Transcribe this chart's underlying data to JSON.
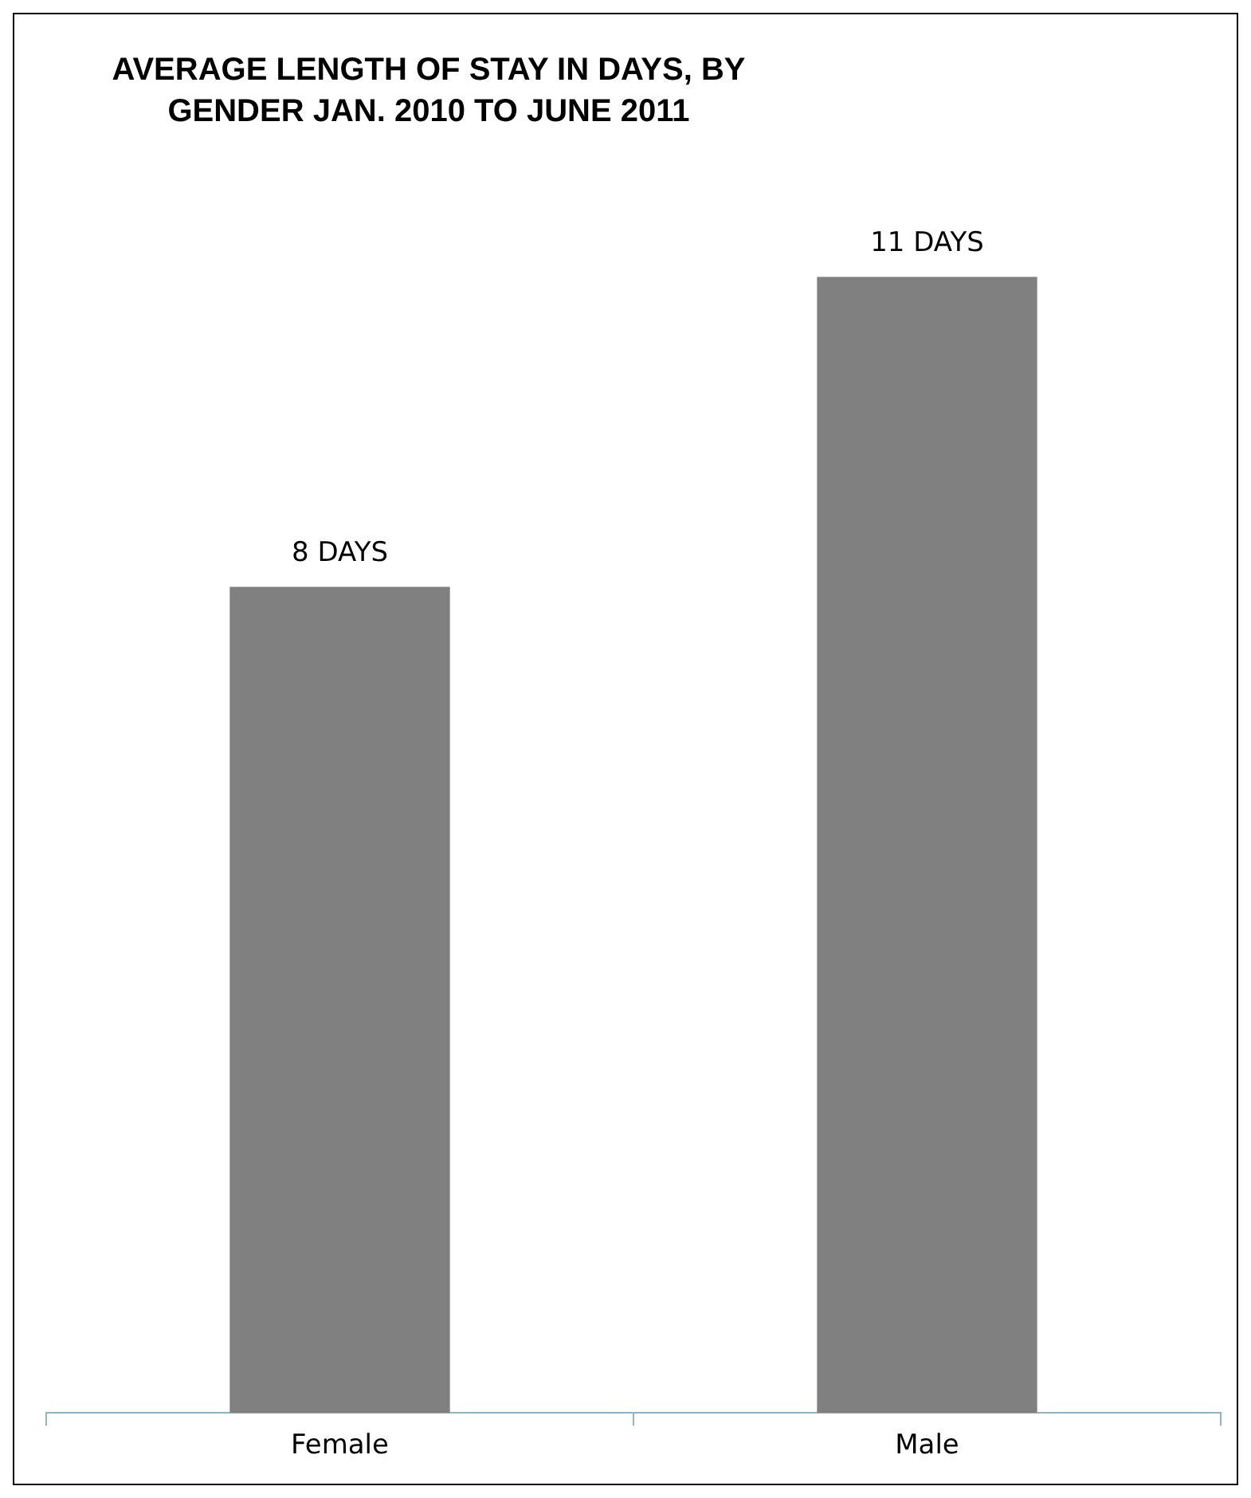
{
  "chart_data": {
    "type": "bar",
    "title": "AVERAGE LENGTH OF STAY IN DAYS, BY GENDER JAN. 2010 TO JUNE 2011",
    "categories": [
      "Female",
      "Male"
    ],
    "values": [
      8,
      11
    ],
    "value_labels": [
      "8 DAYS",
      "11 DAYS"
    ],
    "color": "#808080",
    "tick_labels": "x",
    "legend": false
  }
}
